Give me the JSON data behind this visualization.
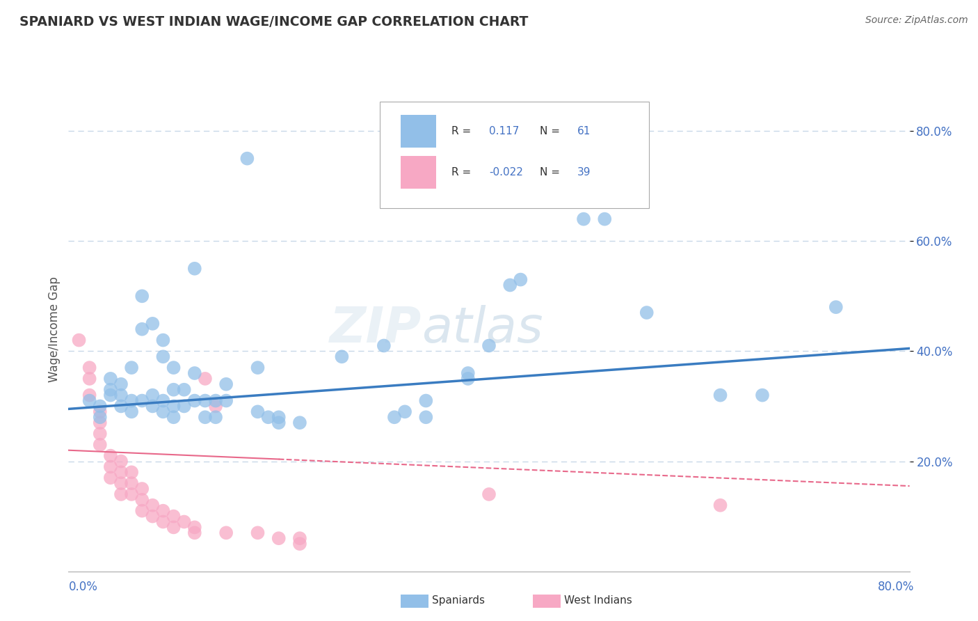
{
  "title": "SPANIARD VS WEST INDIAN WAGE/INCOME GAP CORRELATION CHART",
  "source": "Source: ZipAtlas.com",
  "ylabel": "Wage/Income Gap",
  "watermark": "ZIPatlas",
  "ytick_labels": [
    "20.0%",
    "40.0%",
    "60.0%",
    "80.0%"
  ],
  "ytick_values": [
    0.2,
    0.4,
    0.6,
    0.8
  ],
  "xlim": [
    0.0,
    0.8
  ],
  "ylim": [
    0.0,
    0.88
  ],
  "spaniards_scatter": [
    [
      0.02,
      0.31
    ],
    [
      0.03,
      0.3
    ],
    [
      0.03,
      0.28
    ],
    [
      0.04,
      0.33
    ],
    [
      0.04,
      0.35
    ],
    [
      0.04,
      0.32
    ],
    [
      0.05,
      0.3
    ],
    [
      0.05,
      0.32
    ],
    [
      0.05,
      0.34
    ],
    [
      0.06,
      0.29
    ],
    [
      0.06,
      0.31
    ],
    [
      0.06,
      0.37
    ],
    [
      0.07,
      0.44
    ],
    [
      0.07,
      0.5
    ],
    [
      0.07,
      0.31
    ],
    [
      0.08,
      0.32
    ],
    [
      0.08,
      0.45
    ],
    [
      0.08,
      0.3
    ],
    [
      0.09,
      0.29
    ],
    [
      0.09,
      0.31
    ],
    [
      0.09,
      0.39
    ],
    [
      0.09,
      0.42
    ],
    [
      0.1,
      0.28
    ],
    [
      0.1,
      0.3
    ],
    [
      0.1,
      0.33
    ],
    [
      0.1,
      0.37
    ],
    [
      0.11,
      0.3
    ],
    [
      0.11,
      0.33
    ],
    [
      0.12,
      0.31
    ],
    [
      0.12,
      0.36
    ],
    [
      0.12,
      0.55
    ],
    [
      0.13,
      0.28
    ],
    [
      0.13,
      0.31
    ],
    [
      0.14,
      0.31
    ],
    [
      0.14,
      0.28
    ],
    [
      0.15,
      0.31
    ],
    [
      0.15,
      0.34
    ],
    [
      0.17,
      0.75
    ],
    [
      0.18,
      0.29
    ],
    [
      0.18,
      0.37
    ],
    [
      0.19,
      0.28
    ],
    [
      0.2,
      0.28
    ],
    [
      0.2,
      0.27
    ],
    [
      0.22,
      0.27
    ],
    [
      0.26,
      0.39
    ],
    [
      0.3,
      0.41
    ],
    [
      0.31,
      0.28
    ],
    [
      0.32,
      0.29
    ],
    [
      0.34,
      0.28
    ],
    [
      0.34,
      0.31
    ],
    [
      0.38,
      0.35
    ],
    [
      0.38,
      0.36
    ],
    [
      0.4,
      0.41
    ],
    [
      0.42,
      0.52
    ],
    [
      0.43,
      0.53
    ],
    [
      0.49,
      0.64
    ],
    [
      0.51,
      0.64
    ],
    [
      0.55,
      0.47
    ],
    [
      0.62,
      0.32
    ],
    [
      0.66,
      0.32
    ],
    [
      0.73,
      0.48
    ]
  ],
  "west_indians_scatter": [
    [
      0.01,
      0.42
    ],
    [
      0.02,
      0.37
    ],
    [
      0.02,
      0.35
    ],
    [
      0.02,
      0.32
    ],
    [
      0.03,
      0.29
    ],
    [
      0.03,
      0.27
    ],
    [
      0.03,
      0.25
    ],
    [
      0.03,
      0.23
    ],
    [
      0.04,
      0.21
    ],
    [
      0.04,
      0.19
    ],
    [
      0.04,
      0.17
    ],
    [
      0.05,
      0.2
    ],
    [
      0.05,
      0.18
    ],
    [
      0.05,
      0.16
    ],
    [
      0.05,
      0.14
    ],
    [
      0.06,
      0.18
    ],
    [
      0.06,
      0.16
    ],
    [
      0.06,
      0.14
    ],
    [
      0.07,
      0.15
    ],
    [
      0.07,
      0.13
    ],
    [
      0.07,
      0.11
    ],
    [
      0.08,
      0.12
    ],
    [
      0.08,
      0.1
    ],
    [
      0.09,
      0.11
    ],
    [
      0.09,
      0.09
    ],
    [
      0.1,
      0.1
    ],
    [
      0.1,
      0.08
    ],
    [
      0.11,
      0.09
    ],
    [
      0.12,
      0.08
    ],
    [
      0.12,
      0.07
    ],
    [
      0.13,
      0.35
    ],
    [
      0.14,
      0.3
    ],
    [
      0.15,
      0.07
    ],
    [
      0.18,
      0.07
    ],
    [
      0.2,
      0.06
    ],
    [
      0.22,
      0.06
    ],
    [
      0.22,
      0.05
    ],
    [
      0.4,
      0.14
    ],
    [
      0.62,
      0.12
    ]
  ],
  "spaniards_color": "#92bfe8",
  "west_indians_color": "#f7a8c4",
  "spaniards_line_color": "#3a7cc1",
  "west_indians_line_color": "#e8688a",
  "background_color": "#ffffff",
  "grid_color": "#c8d8e8",
  "title_color": "#333333",
  "source_color": "#666666",
  "sp_R": "0.117",
  "sp_N": "61",
  "wi_R": "-0.022",
  "wi_N": "39"
}
